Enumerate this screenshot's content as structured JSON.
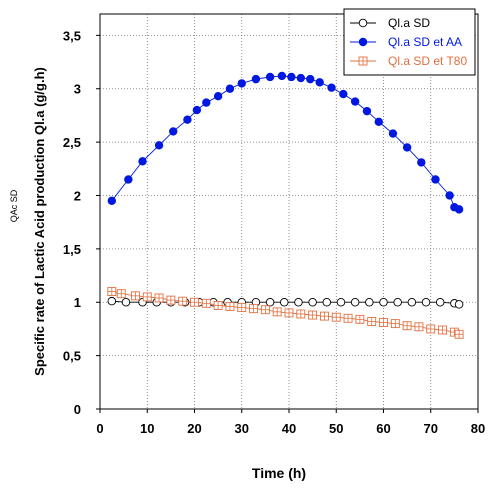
{
  "chart_data": {
    "type": "scatter",
    "xlabel": "Time (h)",
    "ylabel": "Specific rate of Lactic Acid production Ql.a (g/g.h)",
    "side_label": "QAc SD",
    "xlim": [
      0,
      80
    ],
    "ylim": [
      0,
      3.7
    ],
    "x_ticks": [
      "0",
      "10",
      "20",
      "30",
      "40",
      "50",
      "60",
      "70",
      "80"
    ],
    "y_ticks": [
      "0",
      "0,5",
      "1",
      "1,5",
      "2",
      "2,5",
      "3",
      "3,5"
    ],
    "grid": true,
    "legend_position": "top-right",
    "series": [
      {
        "name": "Ql.a SD",
        "color": "#000000",
        "marker": "open-circle",
        "x": [
          2.5,
          5.5,
          9,
          12,
          15,
          18,
          21,
          24,
          27,
          30,
          33,
          36,
          39,
          42,
          45,
          48,
          51,
          54,
          57,
          60,
          63,
          66,
          69,
          72,
          75,
          76
        ],
        "y": [
          1.01,
          1.0,
          1.0,
          1.0,
          1.0,
          1.0,
          1.0,
          1.0,
          1.0,
          1.0,
          1.0,
          1.0,
          1.0,
          1.0,
          1.0,
          1.0,
          1.0,
          1.0,
          1.0,
          1.0,
          1.0,
          1.0,
          1.0,
          1.0,
          0.99,
          0.98
        ]
      },
      {
        "name": "Ql.a SD et AA",
        "color": "#0018e0",
        "marker": "filled-circle",
        "x": [
          2.5,
          6,
          9,
          12.5,
          15.5,
          18.5,
          20.5,
          22.5,
          25,
          27.5,
          30,
          33,
          36,
          38.5,
          40.5,
          42.5,
          44.5,
          46.5,
          49,
          51.5,
          54,
          56.5,
          59,
          62,
          65,
          68,
          71,
          74,
          75,
          76
        ],
        "y": [
          1.95,
          2.15,
          2.32,
          2.47,
          2.6,
          2.71,
          2.8,
          2.87,
          2.93,
          3.0,
          3.05,
          3.09,
          3.11,
          3.12,
          3.11,
          3.1,
          3.09,
          3.06,
          3.01,
          2.95,
          2.88,
          2.79,
          2.69,
          2.58,
          2.45,
          2.31,
          2.15,
          2.0,
          1.89,
          1.87
        ]
      },
      {
        "name": "Ql.a SD et T80",
        "color": "#e07040",
        "marker": "open-square",
        "x": [
          2.5,
          4.5,
          7.5,
          10,
          12.5,
          15,
          17.5,
          20,
          22.5,
          25,
          27.5,
          30,
          32.5,
          35,
          37.5,
          40,
          42.5,
          45,
          47.5,
          50,
          52.5,
          55,
          57.5,
          60,
          62.5,
          65,
          67.5,
          70,
          72.5,
          75,
          76
        ],
        "y": [
          1.1,
          1.08,
          1.06,
          1.05,
          1.04,
          1.02,
          1.01,
          1.0,
          0.99,
          0.97,
          0.96,
          0.95,
          0.94,
          0.93,
          0.91,
          0.9,
          0.89,
          0.88,
          0.87,
          0.86,
          0.85,
          0.84,
          0.82,
          0.81,
          0.8,
          0.78,
          0.77,
          0.75,
          0.74,
          0.72,
          0.7
        ]
      }
    ]
  }
}
